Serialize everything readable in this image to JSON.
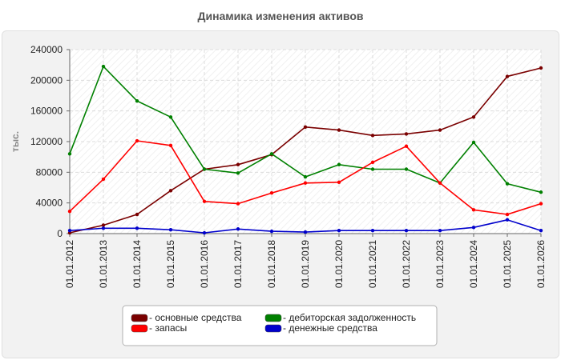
{
  "title": "Динамика изменения активов",
  "chart_data": {
    "type": "line",
    "title": "Динамика изменения активов",
    "ylabel": "тыс.",
    "xlabel": "",
    "ylim": [
      0,
      240000
    ],
    "yticks": [
      0,
      40000,
      80000,
      120000,
      160000,
      200000,
      240000
    ],
    "grid": true,
    "legend_position": "bottom",
    "categories": [
      "01.01.2012",
      "01.01.2013",
      "01.01.2014",
      "01.01.2015",
      "01.01.2016",
      "01.01.2017",
      "01.01.2018",
      "01.01.2019",
      "01.01.2020",
      "01.01.2021",
      "01.01.2022",
      "01.01.2023",
      "01.01.2024",
      "01.01.2025",
      "01.01.2026"
    ],
    "series": [
      {
        "name": "- основные средства",
        "color": "#7a0000",
        "values": [
          1000,
          11000,
          25000,
          56000,
          84000,
          90000,
          103000,
          139000,
          135000,
          128000,
          130000,
          135000,
          152000,
          205000,
          216000
        ]
      },
      {
        "name": "- дебиторская задолженность",
        "color": "#008000",
        "values": [
          104000,
          218000,
          173000,
          152000,
          84000,
          79000,
          104000,
          74000,
          90000,
          84000,
          84000,
          66000,
          119000,
          65000,
          54000
        ]
      },
      {
        "name": "- запасы",
        "color": "#ff0000",
        "values": [
          29000,
          71000,
          121000,
          115000,
          42000,
          39000,
          53000,
          66000,
          67000,
          93000,
          114000,
          66000,
          31000,
          25000,
          39000
        ]
      },
      {
        "name": "- денежные средства",
        "color": "#0000cc",
        "values": [
          4000,
          7000,
          7000,
          5000,
          1000,
          6000,
          3000,
          2000,
          4000,
          4000,
          4000,
          4000,
          8000,
          18000,
          4000
        ]
      }
    ]
  }
}
